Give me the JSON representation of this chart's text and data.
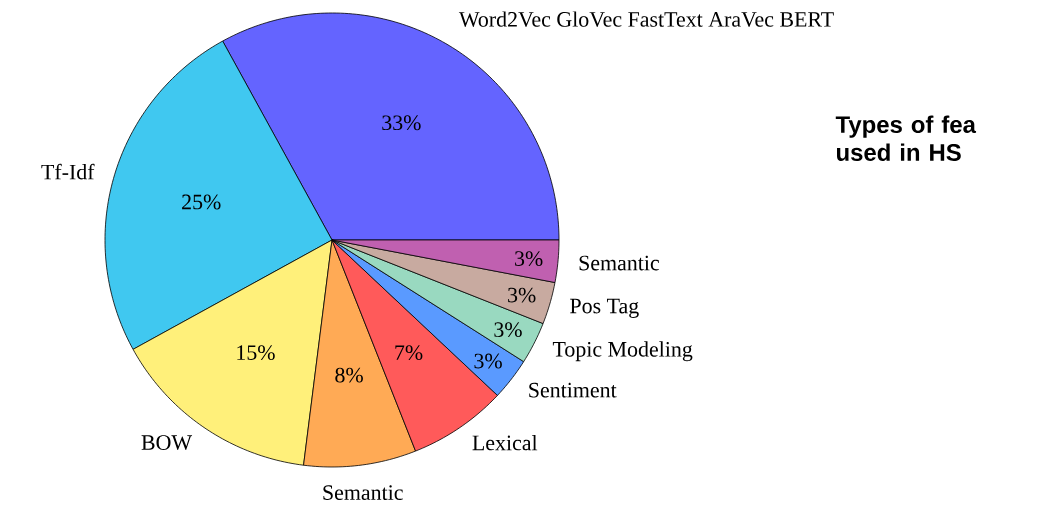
{
  "chart_data": {
    "type": "pie",
    "categories": [
      "Word2Vec GloVec FastText AraVec BERT",
      "Tf-Idf",
      "BOW",
      "Semantic",
      "Lexical",
      "Sentiment",
      "Topic Modeling",
      "Pos Tag",
      "Semantic"
    ],
    "values": [
      33,
      25,
      15,
      8,
      7,
      3,
      3,
      3,
      3
    ],
    "value_labels": [
      "33%",
      "25%",
      "15%",
      "8%",
      "7%",
      "3%",
      "3%",
      "3%",
      "3%"
    ],
    "colors": [
      "#6464ff",
      "#40c8f0",
      "#fff07a",
      "#ffaa55",
      "#ff5a5a",
      "#5a9aff",
      "#99d9c0",
      "#c8aaa0",
      "#c060b0"
    ],
    "annotations": [
      "Types of fea used in HS"
    ]
  }
}
